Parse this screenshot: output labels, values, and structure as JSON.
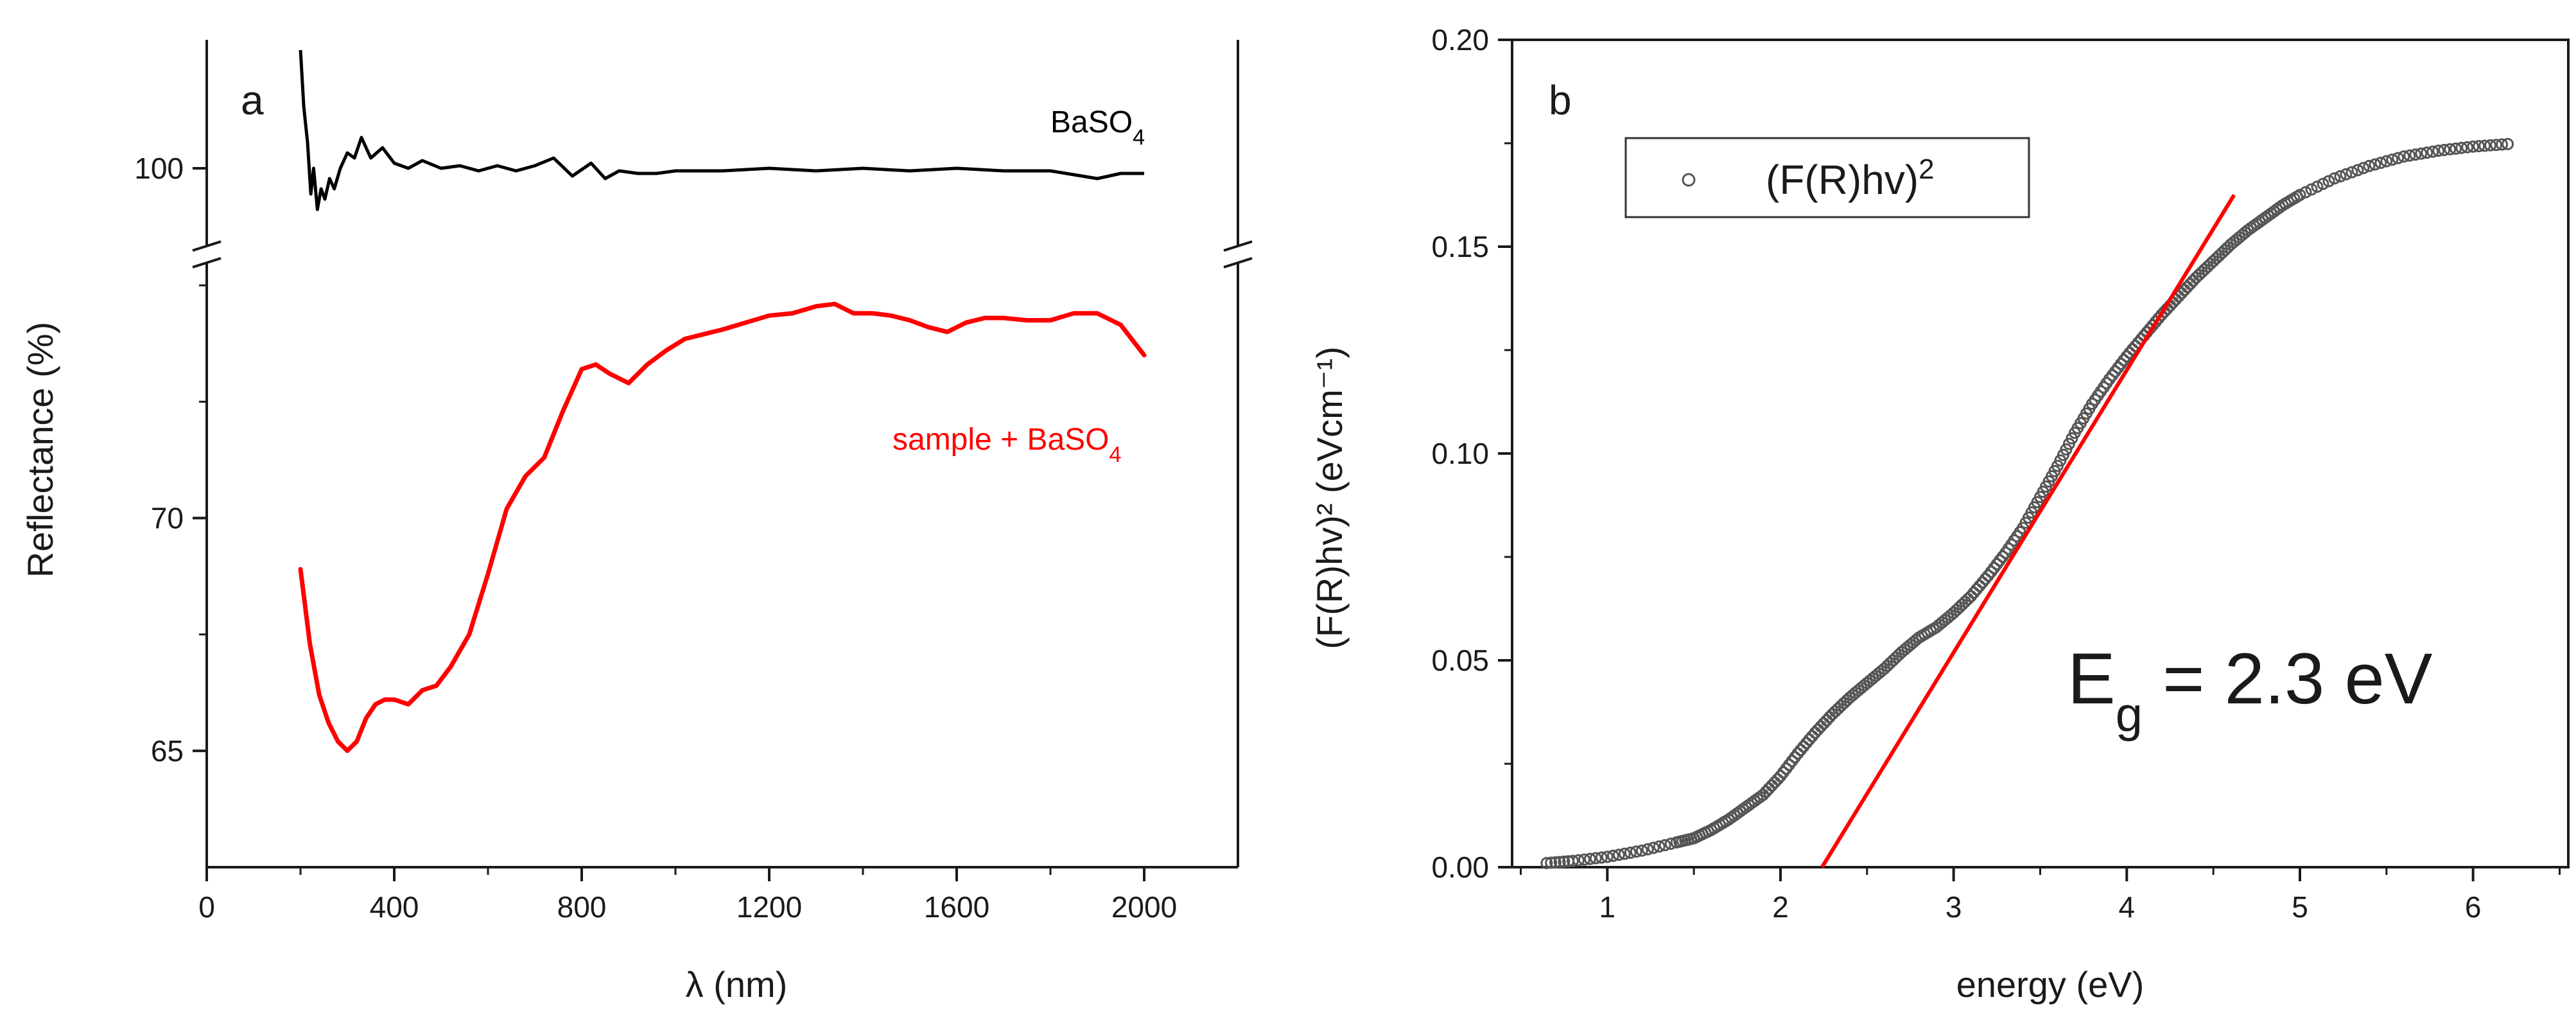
{
  "colors": {
    "axis": "#1a1a1a",
    "reference_series": "#000000",
    "sample_series": "#ff0000",
    "fit_line": "#ff0000",
    "marker": "#555555"
  },
  "chart_data": [
    {
      "panel": "a",
      "type": "line",
      "xlabel": "λ (nm)",
      "ylabel": "Reflectance (%)",
      "xlim": [
        0,
        2200
      ],
      "x_ticks": [
        0,
        400,
        800,
        1200,
        1600,
        2000
      ],
      "y_axis_break": true,
      "y_segments": [
        {
          "ylim": [
            62.5,
            75.5
          ],
          "ticks": [
            65,
            70
          ],
          "minor": [
            67.5,
            72.5,
            75
          ]
        },
        {
          "ylim": [
            98.5,
            102.5
          ],
          "ticks": [
            100
          ],
          "minor": []
        }
      ],
      "series": [
        {
          "name": "BaSO",
          "name_subscript": "4",
          "color": "#000000",
          "x": [
            200,
            207,
            215,
            222,
            228,
            236,
            244,
            252,
            262,
            272,
            285,
            300,
            315,
            330,
            350,
            375,
            400,
            430,
            460,
            500,
            540,
            580,
            620,
            660,
            700,
            740,
            780,
            820,
            850,
            880,
            920,
            960,
            1000,
            1100,
            1200,
            1300,
            1400,
            1500,
            1600,
            1700,
            1800,
            1900,
            1950,
            2000
          ],
          "y": [
            102.3,
            101.2,
            100.5,
            99.5,
            100.0,
            99.2,
            99.6,
            99.4,
            99.8,
            99.6,
            100.0,
            100.3,
            100.2,
            100.6,
            100.2,
            100.4,
            100.1,
            100.0,
            100.15,
            100.0,
            100.05,
            99.95,
            100.05,
            99.95,
            100.05,
            100.2,
            99.85,
            100.1,
            99.8,
            99.95,
            99.9,
            99.9,
            99.95,
            99.95,
            100.0,
            99.95,
            100.0,
            99.95,
            100.0,
            99.95,
            99.95,
            99.8,
            99.9,
            99.9
          ]
        },
        {
          "name": "sample + BaSO",
          "name_subscript": "4",
          "color": "#ff0000",
          "x": [
            200,
            220,
            240,
            260,
            280,
            300,
            320,
            340,
            360,
            380,
            400,
            430,
            460,
            490,
            520,
            560,
            600,
            640,
            680,
            720,
            760,
            800,
            830,
            860,
            900,
            940,
            980,
            1020,
            1060,
            1100,
            1150,
            1200,
            1250,
            1300,
            1340,
            1380,
            1420,
            1460,
            1500,
            1540,
            1580,
            1620,
            1660,
            1700,
            1750,
            1800,
            1850,
            1900,
            1950,
            2000
          ],
          "y": [
            68.9,
            67.3,
            66.2,
            65.6,
            65.2,
            65.0,
            65.2,
            65.7,
            66.0,
            66.1,
            66.1,
            66.0,
            66.3,
            66.4,
            66.8,
            67.5,
            68.8,
            70.2,
            70.9,
            71.3,
            72.3,
            73.2,
            73.3,
            73.1,
            72.9,
            73.3,
            73.6,
            73.85,
            73.95,
            74.05,
            74.2,
            74.35,
            74.4,
            74.55,
            74.6,
            74.4,
            74.4,
            74.35,
            74.25,
            74.1,
            74.0,
            74.2,
            74.3,
            74.3,
            74.25,
            74.25,
            74.4,
            74.4,
            74.15,
            73.5
          ]
        }
      ]
    },
    {
      "panel": "b",
      "type": "scatter",
      "xlabel": "energy (eV)",
      "ylabel": "(F(R)hv)² (eVcm⁻¹)",
      "xlim": [
        0.45,
        6.55
      ],
      "ylim": [
        0,
        0.2
      ],
      "x_ticks": [
        1,
        2,
        3,
        4,
        5,
        6
      ],
      "y_ticks": [
        0.0,
        0.05,
        0.1,
        0.15,
        0.2
      ],
      "y_tick_labels": [
        "0.00",
        "0.05",
        "0.10",
        "0.15",
        "0.20"
      ],
      "legend": {
        "label": "(F(R)hv)",
        "superscript": "2",
        "position": "top-left"
      },
      "annotation": {
        "text_main": "E",
        "subscript": "g",
        "text_rest": " = 2.3 eV"
      },
      "series": [
        {
          "name": "(F(R)hv)2",
          "marker": "open-circle",
          "color": "#555555",
          "x": [
            0.65,
            0.8,
            1.0,
            1.2,
            1.4,
            1.5,
            1.6,
            1.7,
            1.8,
            1.9,
            2.0,
            2.1,
            2.2,
            2.3,
            2.4,
            2.5,
            2.6,
            2.7,
            2.8,
            2.9,
            3.0,
            3.1,
            3.2,
            3.3,
            3.4,
            3.5,
            3.6,
            3.7,
            3.8,
            3.9,
            4.0,
            4.1,
            4.2,
            4.3,
            4.4,
            4.5,
            4.6,
            4.7,
            4.8,
            4.9,
            5.0,
            5.2,
            5.4,
            5.6,
            5.8,
            6.0,
            6.2
          ],
          "y": [
            0.001,
            0.0015,
            0.0025,
            0.004,
            0.006,
            0.007,
            0.009,
            0.0115,
            0.0145,
            0.0175,
            0.022,
            0.0275,
            0.0325,
            0.037,
            0.041,
            0.0445,
            0.048,
            0.052,
            0.0555,
            0.058,
            0.0615,
            0.0655,
            0.0705,
            0.076,
            0.082,
            0.0895,
            0.097,
            0.105,
            0.112,
            0.118,
            0.1235,
            0.1285,
            0.1335,
            0.138,
            0.1425,
            0.1465,
            0.1505,
            0.154,
            0.157,
            0.16,
            0.1625,
            0.1665,
            0.1695,
            0.1718,
            0.1732,
            0.1742,
            0.1748
          ]
        },
        {
          "name": "linear fit",
          "type": "line",
          "color": "#ff0000",
          "x": [
            2.24,
            4.62
          ],
          "y": [
            0.0,
            0.1625
          ]
        }
      ]
    }
  ]
}
